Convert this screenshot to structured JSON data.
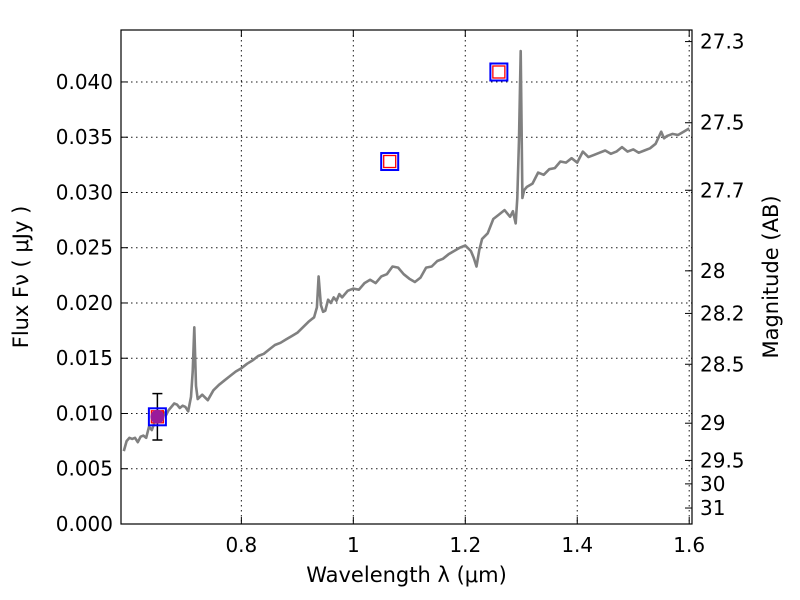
{
  "chart_data": {
    "type": "line",
    "xlabel": "Wavelength  λ (μm)",
    "ylabel": "Flux  Fν  ( μJy )",
    "y2label": "Magnitude (AB)",
    "xlim": [
      0.585,
      1.605
    ],
    "ylim": [
      0.0,
      0.0447
    ],
    "grid": true,
    "x_ticks": [
      0.8,
      1.0,
      1.2,
      1.4,
      1.6
    ],
    "x_tick_labels": [
      "0.8",
      "1",
      "1.2",
      "1.4",
      "1.6"
    ],
    "y_ticks": [
      0.0,
      0.005,
      0.01,
      0.015,
      0.02,
      0.025,
      0.03,
      0.035,
      0.04
    ],
    "y_tick_labels": [
      "0.000",
      "0.005",
      "0.010",
      "0.015",
      "0.020",
      "0.025",
      "0.030",
      "0.035",
      "0.040"
    ],
    "mag_ticks": [
      27.3,
      27.5,
      27.7,
      28,
      28.2,
      28.5,
      29,
      29.5,
      30,
      31
    ],
    "mag_tick_labels": [
      "27.3",
      "27.5",
      "27.7",
      "28",
      "28.2",
      "28.5",
      "29",
      "29.5",
      "30",
      "31"
    ],
    "colors": {
      "spectrum": "#808080",
      "square_edge": "#0000ff",
      "square_inner": "#ff0000",
      "measured_point": "#9a1a9a",
      "errorbar": "#000000"
    },
    "series": [
      {
        "kind": "spectrum",
        "x": [
          0.59,
          0.595,
          0.6,
          0.605,
          0.61,
          0.615,
          0.62,
          0.625,
          0.63,
          0.635,
          0.64,
          0.645,
          0.65,
          0.655,
          0.66,
          0.665,
          0.67,
          0.675,
          0.68,
          0.685,
          0.69,
          0.695,
          0.7,
          0.705,
          0.71,
          0.713,
          0.716,
          0.719,
          0.722,
          0.73,
          0.74,
          0.75,
          0.76,
          0.77,
          0.78,
          0.79,
          0.8,
          0.81,
          0.82,
          0.83,
          0.84,
          0.85,
          0.86,
          0.87,
          0.88,
          0.89,
          0.9,
          0.91,
          0.92,
          0.925,
          0.93,
          0.935,
          0.938,
          0.942,
          0.946,
          0.95,
          0.955,
          0.96,
          0.965,
          0.97,
          0.975,
          0.98,
          0.99,
          1.0,
          1.01,
          1.02,
          1.03,
          1.04,
          1.05,
          1.06,
          1.07,
          1.08,
          1.09,
          1.1,
          1.11,
          1.12,
          1.13,
          1.14,
          1.15,
          1.16,
          1.17,
          1.18,
          1.19,
          1.2,
          1.21,
          1.215,
          1.22,
          1.225,
          1.23,
          1.24,
          1.25,
          1.26,
          1.27,
          1.28,
          1.285,
          1.29,
          1.293,
          1.296,
          1.299,
          1.302,
          1.305,
          1.31,
          1.32,
          1.33,
          1.34,
          1.35,
          1.36,
          1.37,
          1.38,
          1.39,
          1.4,
          1.41,
          1.42,
          1.43,
          1.44,
          1.45,
          1.46,
          1.47,
          1.48,
          1.49,
          1.5,
          1.51,
          1.52,
          1.53,
          1.54,
          1.55,
          1.555,
          1.56,
          1.57,
          1.58,
          1.59,
          1.6
        ],
        "y": [
          0.0066,
          0.0075,
          0.0078,
          0.0077,
          0.0078,
          0.0074,
          0.0079,
          0.008,
          0.0078,
          0.0088,
          0.0085,
          0.0092,
          0.0094,
          0.0098,
          0.0102,
          0.0098,
          0.0103,
          0.0106,
          0.0109,
          0.0108,
          0.0105,
          0.0107,
          0.0106,
          0.0102,
          0.0115,
          0.0138,
          0.0178,
          0.0125,
          0.0113,
          0.0117,
          0.0112,
          0.0121,
          0.0126,
          0.013,
          0.0134,
          0.0138,
          0.0141,
          0.0145,
          0.0148,
          0.0152,
          0.0154,
          0.0158,
          0.0162,
          0.0164,
          0.0167,
          0.017,
          0.0173,
          0.0178,
          0.0183,
          0.0185,
          0.0187,
          0.0196,
          0.0224,
          0.0198,
          0.0192,
          0.0193,
          0.0203,
          0.02,
          0.0205,
          0.0202,
          0.0208,
          0.0205,
          0.0211,
          0.0213,
          0.0212,
          0.0218,
          0.0221,
          0.0218,
          0.0224,
          0.0226,
          0.0233,
          0.0232,
          0.0226,
          0.0222,
          0.0219,
          0.0223,
          0.0232,
          0.0233,
          0.0238,
          0.024,
          0.0244,
          0.0247,
          0.025,
          0.0252,
          0.0247,
          0.0241,
          0.0233,
          0.0248,
          0.0258,
          0.0263,
          0.0276,
          0.028,
          0.0284,
          0.0278,
          0.0283,
          0.0272,
          0.0295,
          0.0348,
          0.0428,
          0.0295,
          0.0302,
          0.0305,
          0.0308,
          0.0318,
          0.0316,
          0.0321,
          0.0322,
          0.0328,
          0.0327,
          0.0331,
          0.0327,
          0.0337,
          0.0332,
          0.0334,
          0.0336,
          0.0338,
          0.0335,
          0.0337,
          0.0341,
          0.0337,
          0.0339,
          0.0336,
          0.0338,
          0.034,
          0.0344,
          0.0355,
          0.0349,
          0.0351,
          0.0353,
          0.0352,
          0.0355,
          0.0358
        ]
      },
      {
        "kind": "photometry-squares",
        "x": [
          0.65,
          1.065,
          1.26
        ],
        "y": [
          0.0097,
          0.0328,
          0.0409
        ]
      },
      {
        "kind": "measured-point",
        "x": [
          0.65
        ],
        "y": [
          0.0097
        ],
        "yerr_low": [
          0.0021
        ],
        "yerr_high": [
          0.0021
        ]
      }
    ]
  }
}
